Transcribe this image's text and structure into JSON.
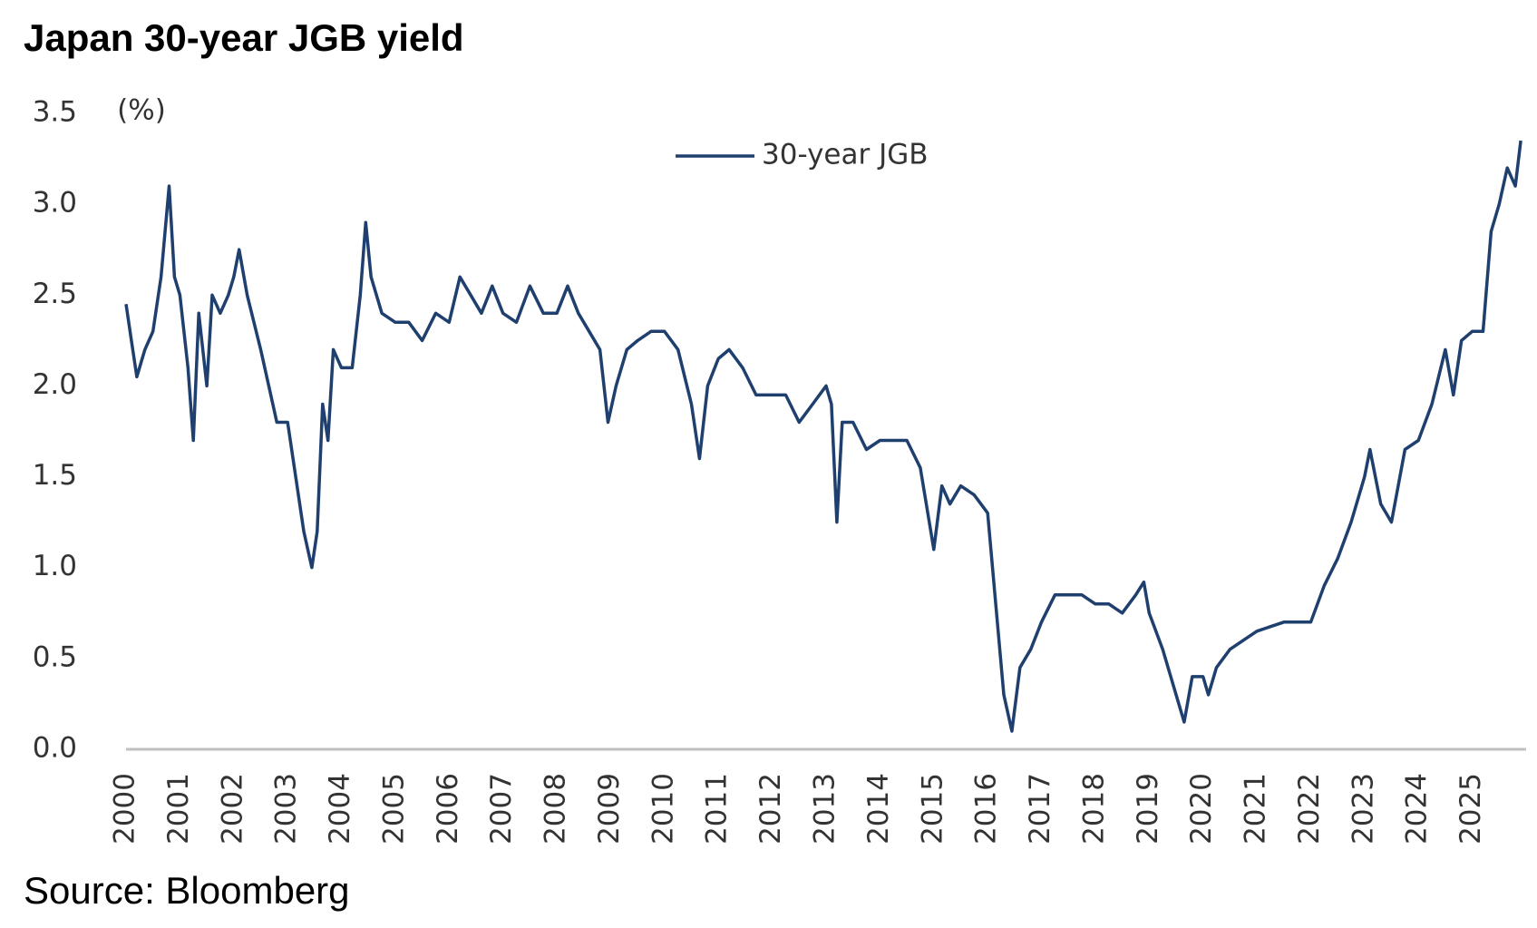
{
  "chart_data": {
    "type": "line",
    "title": "Japan 30-year JGB yield",
    "y_unit": "(%)",
    "source": "Source: Bloomberg",
    "legend": "top",
    "xlim": [
      2000,
      2026
    ],
    "xticks": [
      2000,
      2001,
      2002,
      2003,
      2004,
      2005,
      2006,
      2007,
      2008,
      2009,
      2010,
      2011,
      2012,
      2013,
      2014,
      2015,
      2016,
      2017,
      2018,
      2019,
      2020,
      2021,
      2022,
      2023,
      2024,
      2025
    ],
    "ylim": [
      0,
      3.5
    ],
    "yticks": [
      {
        "value": 0,
        "label": "0.0"
      },
      0.5,
      {
        "value": 1,
        "label": "1.0"
      },
      1.5,
      {
        "value": 2,
        "label": "2.0"
      },
      2.5,
      {
        "value": 3,
        "label": "3.0"
      },
      3.5
    ],
    "x": [
      2000.0,
      2000.1,
      2000.2,
      2000.35,
      2000.5,
      2000.65,
      2000.8,
      2000.9,
      2001.0,
      2001.15,
      2001.25,
      2001.35,
      2001.5,
      2001.6,
      2001.75,
      2001.9,
      2002.0,
      2002.1,
      2002.25,
      2002.5,
      2002.65,
      2002.8,
      2003.0,
      2003.15,
      2003.3,
      2003.45,
      2003.55,
      2003.65,
      2003.75,
      2003.85,
      2004.0,
      2004.2,
      2004.35,
      2004.45,
      2004.55,
      2004.75,
      2005.0,
      2005.25,
      2005.5,
      2005.75,
      2006.0,
      2006.2,
      2006.4,
      2006.6,
      2006.8,
      2007.0,
      2007.25,
      2007.5,
      2007.75,
      2008.0,
      2008.2,
      2008.4,
      2008.6,
      2008.8,
      2008.95,
      2009.1,
      2009.3,
      2009.5,
      2009.75,
      2010.0,
      2010.25,
      2010.5,
      2010.65,
      2010.8,
      2011.0,
      2011.2,
      2011.45,
      2011.7,
      2012.0,
      2012.25,
      2012.5,
      2012.75,
      2013.0,
      2013.1,
      2013.2,
      2013.3,
      2013.5,
      2013.75,
      2014.0,
      2014.25,
      2014.5,
      2014.75,
      2015.0,
      2015.15,
      2015.3,
      2015.5,
      2015.75,
      2016.0,
      2016.15,
      2016.3,
      2016.45,
      2016.6,
      2016.8,
      2017.0,
      2017.25,
      2017.5,
      2017.75,
      2018.0,
      2018.25,
      2018.5,
      2018.75,
      2018.9,
      2019.0,
      2019.25,
      2019.5,
      2019.65,
      2019.8,
      2020.0,
      2020.1,
      2020.25,
      2020.5,
      2020.75,
      2021.0,
      2021.5,
      2022.0,
      2022.25,
      2022.5,
      2022.75,
      2023.0,
      2023.1,
      2023.3,
      2023.5,
      2023.75,
      2024.0,
      2024.25,
      2024.5,
      2024.65,
      2024.8,
      2025.0,
      2025.2,
      2025.35,
      2025.5,
      2025.65,
      2025.8,
      2025.9
    ],
    "series": [
      {
        "name": "30-year JGB",
        "color": "#1f3f6e",
        "values": [
          2.45,
          2.25,
          2.05,
          2.2,
          2.3,
          2.6,
          3.1,
          2.6,
          2.5,
          2.1,
          1.7,
          2.4,
          2.0,
          2.5,
          2.4,
          2.5,
          2.6,
          2.75,
          2.5,
          2.2,
          2.0,
          1.8,
          1.8,
          1.5,
          1.2,
          1.0,
          1.2,
          1.9,
          1.7,
          2.2,
          2.1,
          2.1,
          2.5,
          2.9,
          2.6,
          2.4,
          2.35,
          2.35,
          2.25,
          2.4,
          2.35,
          2.6,
          2.5,
          2.4,
          2.55,
          2.4,
          2.35,
          2.55,
          2.4,
          2.4,
          2.55,
          2.4,
          2.3,
          2.2,
          1.8,
          2.0,
          2.2,
          2.25,
          2.3,
          2.3,
          2.2,
          1.9,
          1.6,
          2.0,
          2.15,
          2.2,
          2.1,
          1.95,
          1.95,
          1.95,
          1.8,
          1.9,
          2.0,
          1.9,
          1.25,
          1.8,
          1.8,
          1.65,
          1.7,
          1.7,
          1.7,
          1.55,
          1.1,
          1.45,
          1.35,
          1.45,
          1.4,
          1.3,
          0.8,
          0.3,
          0.1,
          0.45,
          0.55,
          0.7,
          0.85,
          0.85,
          0.85,
          0.8,
          0.8,
          0.75,
          0.85,
          0.92,
          0.75,
          0.55,
          0.3,
          0.15,
          0.4,
          0.4,
          0.3,
          0.45,
          0.55,
          0.6,
          0.65,
          0.7,
          0.7,
          0.9,
          1.05,
          1.25,
          1.5,
          1.65,
          1.35,
          1.25,
          1.65,
          1.7,
          1.9,
          2.2,
          1.95,
          2.25,
          2.3,
          2.3,
          2.85,
          3.0,
          3.2,
          3.1,
          3.35
        ]
      }
    ]
  }
}
